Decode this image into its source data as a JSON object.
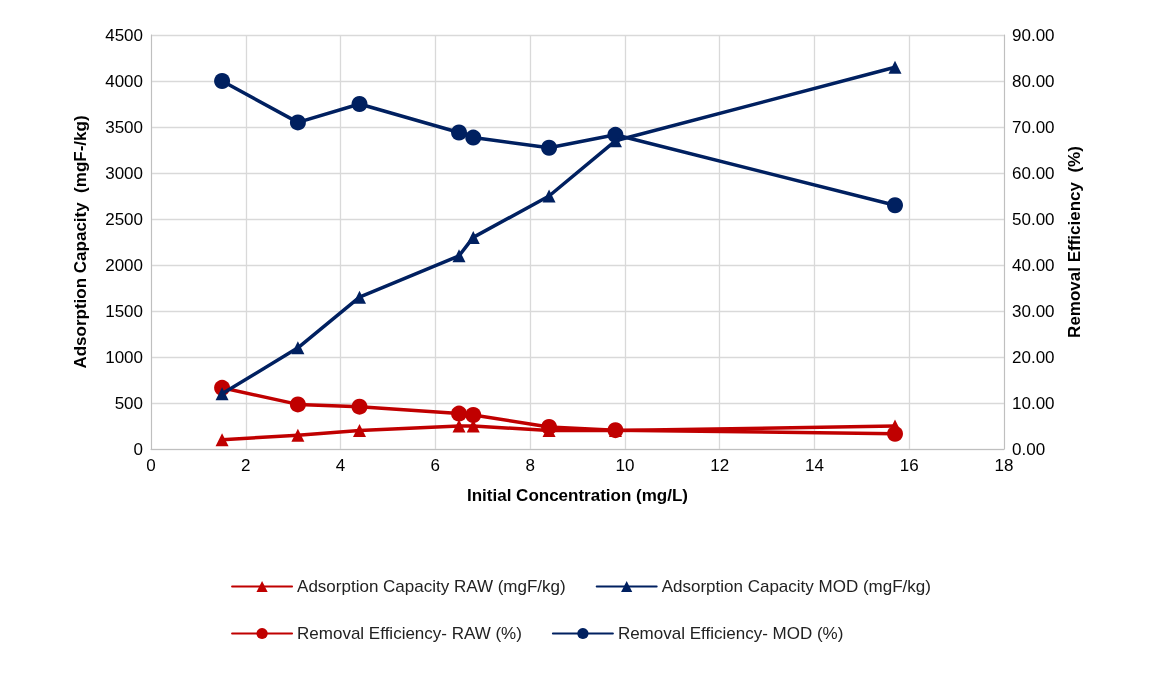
{
  "chart_data": {
    "type": "line",
    "xlabel": "Initial Concentration (mg/L)",
    "ylabel": "Adsorption Capacity  (mgF-/kg)",
    "y2label": "Removal Efficiency  (%)",
    "x": [
      1.5,
      3.1,
      4.4,
      6.5,
      6.8,
      8.4,
      9.8,
      15.7
    ],
    "series": [
      {
        "name": "Adsorption Capacity RAW (mgF/kg)",
        "color": "#c00000",
        "marker": "triangle",
        "values": [
          100,
          150,
          200,
          250,
          250,
          200,
          200,
          250
        ]
      },
      {
        "name": "Adsorption Capacity MOD (mgF/kg)",
        "color": "#002060",
        "marker": "triangle",
        "values": [
          600,
          1100,
          1650,
          2100,
          2300,
          2750,
          3350,
          4150
        ]
      },
      {
        "name": "Removal Efficiency- RAW (%)",
        "color": "#c00000",
        "marker": "circle",
        "axis": "y2",
        "values": [
          13.3,
          9.7,
          9.2,
          7.7,
          7.4,
          4.8,
          4.1,
          3.3
        ]
      },
      {
        "name": "Removal Efficiency- MOD (%)",
        "color": "#002060",
        "marker": "circle",
        "axis": "y2",
        "values": [
          80,
          71,
          75,
          68.8,
          67.7,
          65.5,
          68.3,
          53
        ]
      }
    ],
    "xlim": [
      0,
      18
    ],
    "xticks": [
      0,
      2,
      4,
      6,
      8,
      10,
      12,
      14,
      16,
      18
    ],
    "ylim": [
      0,
      4500
    ],
    "yticks": [
      0,
      500,
      1000,
      1500,
      2000,
      2500,
      3000,
      3500,
      4000,
      4500
    ],
    "y2lim": [
      0,
      90
    ],
    "y2ticks": [
      {
        "value": 0,
        "label": "0.00"
      },
      {
        "value": 10,
        "label": "10.00"
      },
      {
        "value": 20,
        "label": "20.00"
      },
      {
        "value": 30,
        "label": "30.00"
      },
      {
        "value": 40,
        "label": "40.00"
      },
      {
        "value": 50,
        "label": "50.00"
      },
      {
        "value": 60,
        "label": "60.00"
      },
      {
        "value": 70,
        "label": "70.00"
      },
      {
        "value": 80,
        "label": "80.00"
      },
      {
        "value": 90,
        "label": "90.00"
      }
    ],
    "grid": true,
    "legend": "bottom",
    "line_style": "solid"
  }
}
